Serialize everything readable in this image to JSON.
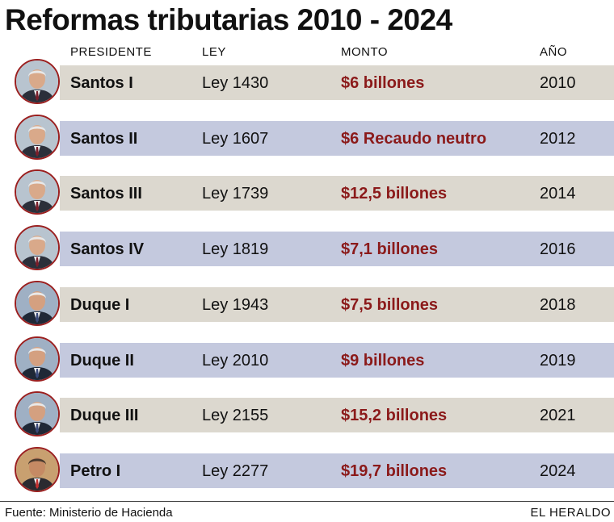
{
  "title": "Reformas tributarias 2010 - 2024",
  "headers": {
    "presidente": "PRESIDENTE",
    "ley": "LEY",
    "monto": "MONTO",
    "anio": "AÑO"
  },
  "colors": {
    "band_beige": "#dcd8cf",
    "band_blue": "#c4c9de",
    "money": "#8b1a1a",
    "avatar_border": "#9b2020"
  },
  "chart_data": {
    "type": "table",
    "title": "Reformas tributarias 2010 - 2024",
    "columns": [
      "PRESIDENTE",
      "LEY",
      "MONTO",
      "AÑO"
    ],
    "rows": [
      {
        "presidente": "Santos I",
        "ley": "Ley 1430",
        "monto": "$6 billones",
        "anio": "2010",
        "avatar": "santos-portrait-icon"
      },
      {
        "presidente": "Santos II",
        "ley": "Ley 1607",
        "monto": "$6 Recaudo neutro",
        "anio": "2012",
        "avatar": "santos-portrait-icon"
      },
      {
        "presidente": "Santos III",
        "ley": "Ley 1739",
        "monto": "$12,5 billones",
        "anio": "2014",
        "avatar": "santos-portrait-icon"
      },
      {
        "presidente": "Santos IV",
        "ley": "Ley 1819",
        "monto": "$7,1 billones",
        "anio": "2016",
        "avatar": "santos-portrait-icon"
      },
      {
        "presidente": "Duque I",
        "ley": "Ley 1943",
        "monto": "$7,5 billones",
        "anio": "2018",
        "avatar": "duque-portrait-icon"
      },
      {
        "presidente": "Duque II",
        "ley": "Ley 2010",
        "monto": "$9 billones",
        "anio": "2019",
        "avatar": "duque-portrait-icon"
      },
      {
        "presidente": "Duque III",
        "ley": "Ley 2155",
        "monto": "$15,2 billones",
        "anio": "2021",
        "avatar": "duque-portrait-icon"
      },
      {
        "presidente": "Petro I",
        "ley": "Ley 2277",
        "monto": "$19,7 billones",
        "anio": "2024",
        "avatar": "petro-portrait-icon"
      }
    ]
  },
  "footer": {
    "source": "Fuente: Ministerio de Hacienda",
    "brand": "EL HERALDO"
  }
}
